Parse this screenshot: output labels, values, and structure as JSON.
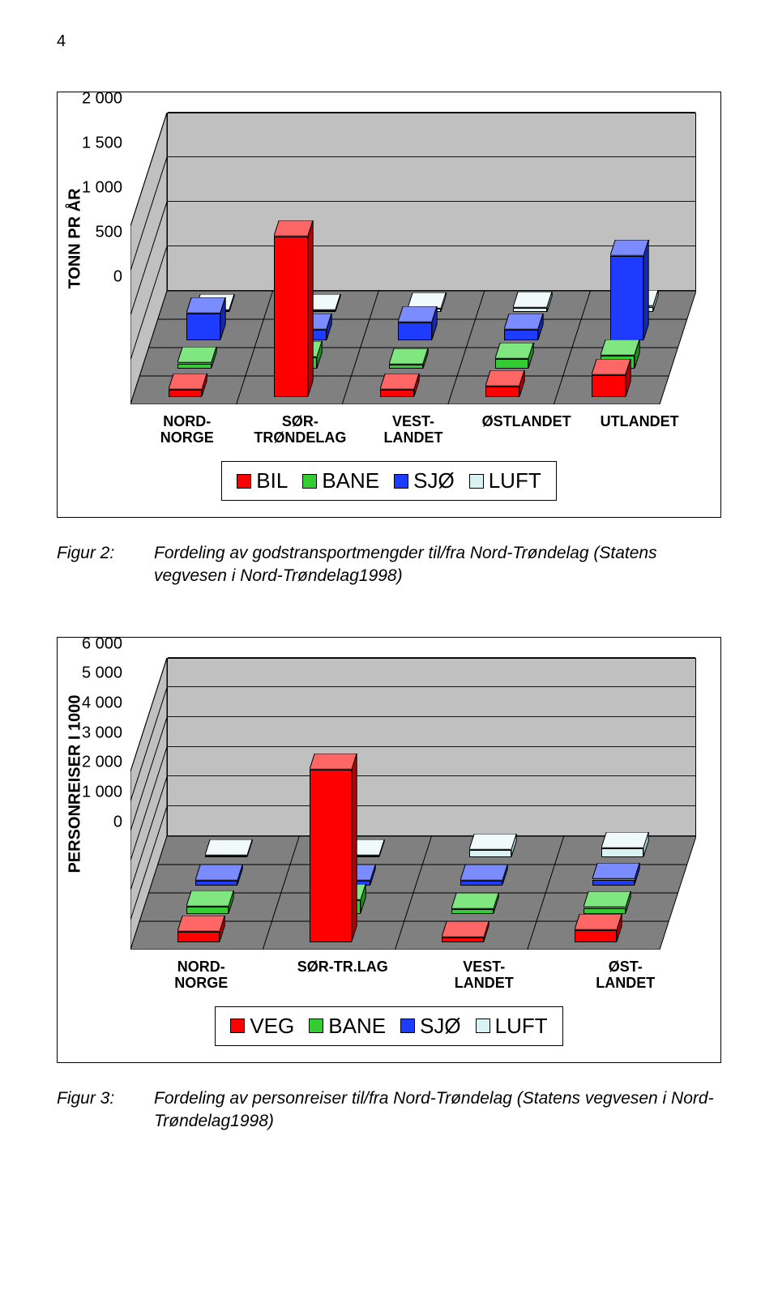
{
  "page_number": "4",
  "chart1": {
    "type": "3d-bar",
    "y_axis_title": "TONN PR ÅR",
    "y_ticks": [
      "0",
      "500",
      "1 000",
      "1 500",
      "2 000"
    ],
    "y_max": 2000,
    "categories": [
      "NORD-\nNORGE",
      "SØR-\nTRØNDELAG",
      "VEST-\nLANDET",
      "ØSTLANDET",
      "UTLANDET"
    ],
    "series": [
      {
        "name": "BIL",
        "color": "#ff0000",
        "top": "#ff6666",
        "side": "#b30000",
        "values": [
          80,
          1800,
          80,
          120,
          250
        ]
      },
      {
        "name": "BANE",
        "color": "#33cc33",
        "top": "#80e680",
        "side": "#1f8f1f",
        "values": [
          60,
          130,
          50,
          110,
          150
        ]
      },
      {
        "name": "SJØ",
        "color": "#1e3cff",
        "top": "#7a8cff",
        "side": "#1329b3",
        "values": [
          300,
          120,
          200,
          120,
          950
        ]
      },
      {
        "name": "LUFT",
        "color": "#d9f2f2",
        "top": "#f0fafa",
        "side": "#a8cccc",
        "values": [
          10,
          10,
          40,
          50,
          60
        ]
      }
    ],
    "backwall_color": "#c0c0c0",
    "floor_color": "#808080",
    "sidewall_color": "#c0c0c0"
  },
  "caption1": {
    "label": "Figur 2:",
    "text": "Fordeling av godstransportmengder til/fra Nord-Trøndelag (Statens vegvesen i Nord-Trøndelag1998)"
  },
  "chart2": {
    "type": "3d-bar",
    "y_axis_title": "PERSONREISER I 1000",
    "y_ticks": [
      "0",
      "1 000",
      "2 000",
      "3 000",
      "4 000",
      "5 000",
      "6 000"
    ],
    "y_max": 6000,
    "categories": [
      "NORD-\nNORGE",
      "SØR-TR.LAG",
      "VEST-\nLANDET",
      "ØST-\nLANDET"
    ],
    "series": [
      {
        "name": "VEG",
        "color": "#ff0000",
        "top": "#ff6666",
        "side": "#b30000",
        "values": [
          350,
          5800,
          150,
          400
        ]
      },
      {
        "name": "BANE",
        "color": "#33cc33",
        "top": "#80e680",
        "side": "#1f8f1f",
        "values": [
          250,
          450,
          150,
          200
        ]
      },
      {
        "name": "SJØ",
        "color": "#1e3cff",
        "top": "#7a8cff",
        "side": "#1329b3",
        "values": [
          150,
          150,
          150,
          200
        ]
      },
      {
        "name": "LUFT",
        "color": "#d9f2f2",
        "top": "#f0fafa",
        "side": "#a8cccc",
        "values": [
          50,
          50,
          250,
          300
        ]
      }
    ],
    "backwall_color": "#c0c0c0",
    "floor_color": "#808080",
    "sidewall_color": "#c0c0c0"
  },
  "caption2": {
    "label": "Figur 3:",
    "text": "Fordeling av personreiser til/fra Nord-Trøndelag (Statens vegvesen i Nord-Trøndelag1998)"
  }
}
